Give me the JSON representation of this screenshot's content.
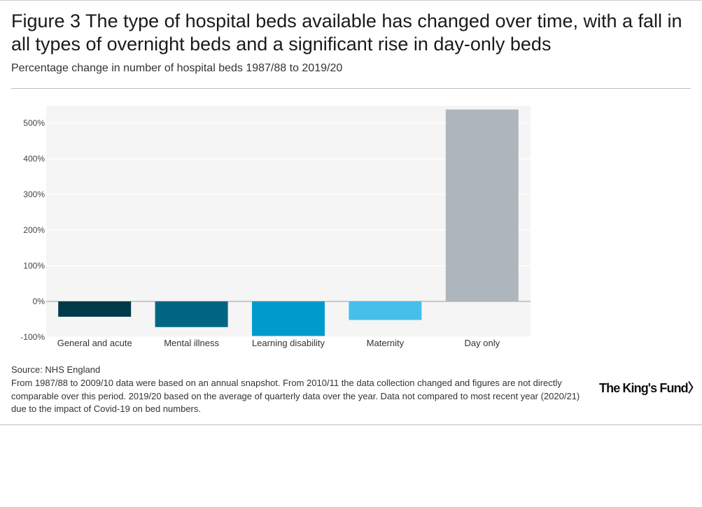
{
  "chart_data": {
    "type": "bar",
    "title": "Figure 3 The type of hospital beds available has changed over time, with a fall in all types of overnight beds and a significant rise in day-only beds",
    "subtitle": "Percentage change in number of hospital beds 1987/88 to 2019/20",
    "categories": [
      "General and acute",
      "Mental illness",
      "Learning disability",
      "Maternity",
      "Day only"
    ],
    "values": [
      -43,
      -72,
      -97,
      -52,
      538
    ],
    "colors": [
      "#003a4a",
      "#006684",
      "#009bcc",
      "#44c0ea",
      "#aeb6bd"
    ],
    "ylim": [
      -100,
      550
    ],
    "yticks": [
      -100,
      0,
      100,
      200,
      300,
      400,
      500
    ],
    "ytick_labels": [
      "-100%",
      "0%",
      "100%",
      "200%",
      "300%",
      "400%",
      "500%"
    ],
    "xlabel": "",
    "ylabel": "",
    "grid": true
  },
  "source": "Source: NHS England",
  "note": "From 1987/88 to 2009/10 data were based on an annual snapshot. From 2010/11 the data collection changed and figures are not directly comparable over this period. 2019/20 based on the average of quarterly data over the year. Data not compared to most recent year (2020/21) due to the impact of Covid-19 on bed numbers.",
  "logo_text": "The King's Fund",
  "logo_glyph": "〉"
}
